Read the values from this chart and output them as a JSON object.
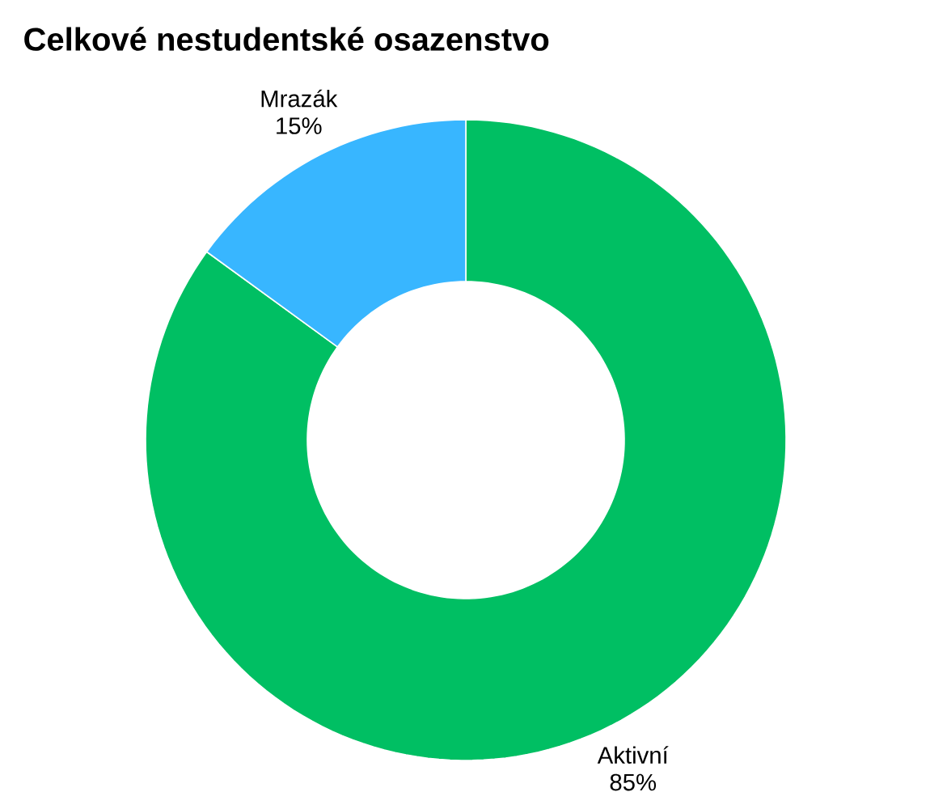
{
  "chart_data": {
    "type": "donut",
    "title": "Celkové nestudentské osazenstvo",
    "categories": [
      "Aktivní",
      "Mrazák"
    ],
    "values": [
      85,
      15
    ],
    "value_labels": [
      "85%",
      "15%"
    ],
    "colors": [
      "#00bf63",
      "#38b6ff"
    ]
  }
}
